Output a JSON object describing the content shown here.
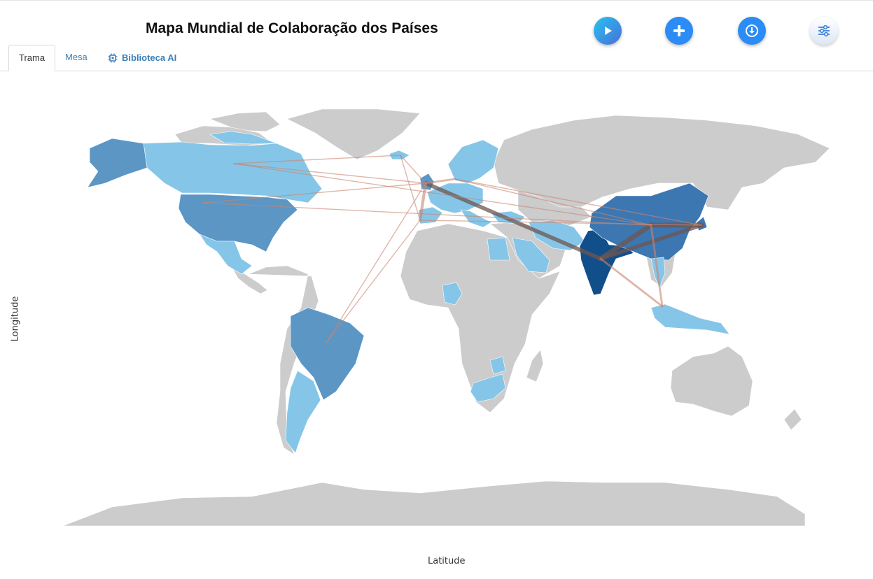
{
  "header": {
    "title": "Mapa Mundial de Colaboração dos Países"
  },
  "toolbar": {
    "actions": [
      {
        "name": "play-button",
        "icon": "play-icon"
      },
      {
        "name": "add-button",
        "icon": "plus-icon"
      },
      {
        "name": "download-button",
        "icon": "download-icon"
      },
      {
        "name": "settings-button",
        "icon": "sliders-icon"
      }
    ]
  },
  "tabs": [
    {
      "label": "Trama",
      "active": true
    },
    {
      "label": "Mesa",
      "active": false
    },
    {
      "label": "Biblioteca AI",
      "active": false,
      "icon": "chip-icon"
    }
  ],
  "chart_data": {
    "type": "choropleth-map",
    "xlabel": "Latitude",
    "ylabel": "Longitude",
    "colors": {
      "land_default": "#cccccc",
      "level_1": "#85c6e8",
      "level_2": "#5b96c5",
      "level_3": "#3c77b2",
      "level_4": "#114f8b",
      "link": "#c98570"
    },
    "countries": [
      {
        "name": "India",
        "level": 4
      },
      {
        "name": "China",
        "level": 3
      },
      {
        "name": "Japan",
        "level": 3
      },
      {
        "name": "United States",
        "level": 2
      },
      {
        "name": "Brazil",
        "level": 2
      },
      {
        "name": "Alaska (United States)",
        "level": 2
      },
      {
        "name": "United Kingdom",
        "level": 2
      },
      {
        "name": "Canada",
        "level": 1
      },
      {
        "name": "Greenland",
        "level": 1
      },
      {
        "name": "Mexico",
        "level": 1
      },
      {
        "name": "Argentina",
        "level": 1
      },
      {
        "name": "Chile",
        "level": 1
      },
      {
        "name": "Iceland",
        "level": 1
      },
      {
        "name": "Norway",
        "level": 1
      },
      {
        "name": "Sweden",
        "level": 1
      },
      {
        "name": "Finland",
        "level": 1
      },
      {
        "name": "Germany",
        "level": 1
      },
      {
        "name": "Poland",
        "level": 1
      },
      {
        "name": "France",
        "level": 1
      },
      {
        "name": "Spain",
        "level": 1
      },
      {
        "name": "Portugal",
        "level": 1
      },
      {
        "name": "Italy",
        "level": 1
      },
      {
        "name": "Greece",
        "level": 1
      },
      {
        "name": "Turkey",
        "level": 1
      },
      {
        "name": "Egypt",
        "level": 1
      },
      {
        "name": "Saudi Arabia",
        "level": 1
      },
      {
        "name": "Iran",
        "level": 1
      },
      {
        "name": "Pakistan",
        "level": 1
      },
      {
        "name": "Nepal",
        "level": 1
      },
      {
        "name": "Bangladesh",
        "level": 2
      },
      {
        "name": "Thailand",
        "level": 1
      },
      {
        "name": "Vietnam",
        "level": 1
      },
      {
        "name": "Malaysia",
        "level": 1
      },
      {
        "name": "Indonesia",
        "level": 1
      },
      {
        "name": "Nigeria",
        "level": 1
      },
      {
        "name": "Tanzania",
        "level": 1
      },
      {
        "name": "South Africa",
        "level": 1
      }
    ],
    "links": [
      {
        "from": "India",
        "to": "China",
        "weight": 5
      },
      {
        "from": "India",
        "to": "Japan",
        "weight": 4
      },
      {
        "from": "India",
        "to": "United Kingdom",
        "weight": 4
      },
      {
        "from": "China",
        "to": "Japan",
        "weight": 5
      },
      {
        "from": "China",
        "to": "Malaysia",
        "weight": 2
      },
      {
        "from": "India",
        "to": "Malaysia",
        "weight": 2
      },
      {
        "from": "United Kingdom",
        "to": "Spain",
        "weight": 3
      },
      {
        "from": "United Kingdom",
        "to": "Germany",
        "weight": 2
      },
      {
        "from": "Canada",
        "to": "United Kingdom",
        "weight": 1
      },
      {
        "from": "Canada",
        "to": "Iceland",
        "weight": 1
      },
      {
        "from": "Canada",
        "to": "China",
        "weight": 1
      },
      {
        "from": "United States",
        "to": "United Kingdom",
        "weight": 1
      },
      {
        "from": "United States",
        "to": "China",
        "weight": 1
      },
      {
        "from": "Brazil",
        "to": "United Kingdom",
        "weight": 1
      },
      {
        "from": "Brazil",
        "to": "Spain",
        "weight": 1
      },
      {
        "from": "Iceland",
        "to": "Spain",
        "weight": 1
      },
      {
        "from": "Iceland",
        "to": "United Kingdom",
        "weight": 1
      },
      {
        "from": "Germany",
        "to": "China",
        "weight": 1
      },
      {
        "from": "Spain",
        "to": "Japan",
        "weight": 1
      },
      {
        "from": "Germany",
        "to": "Japan",
        "weight": 1
      }
    ]
  }
}
